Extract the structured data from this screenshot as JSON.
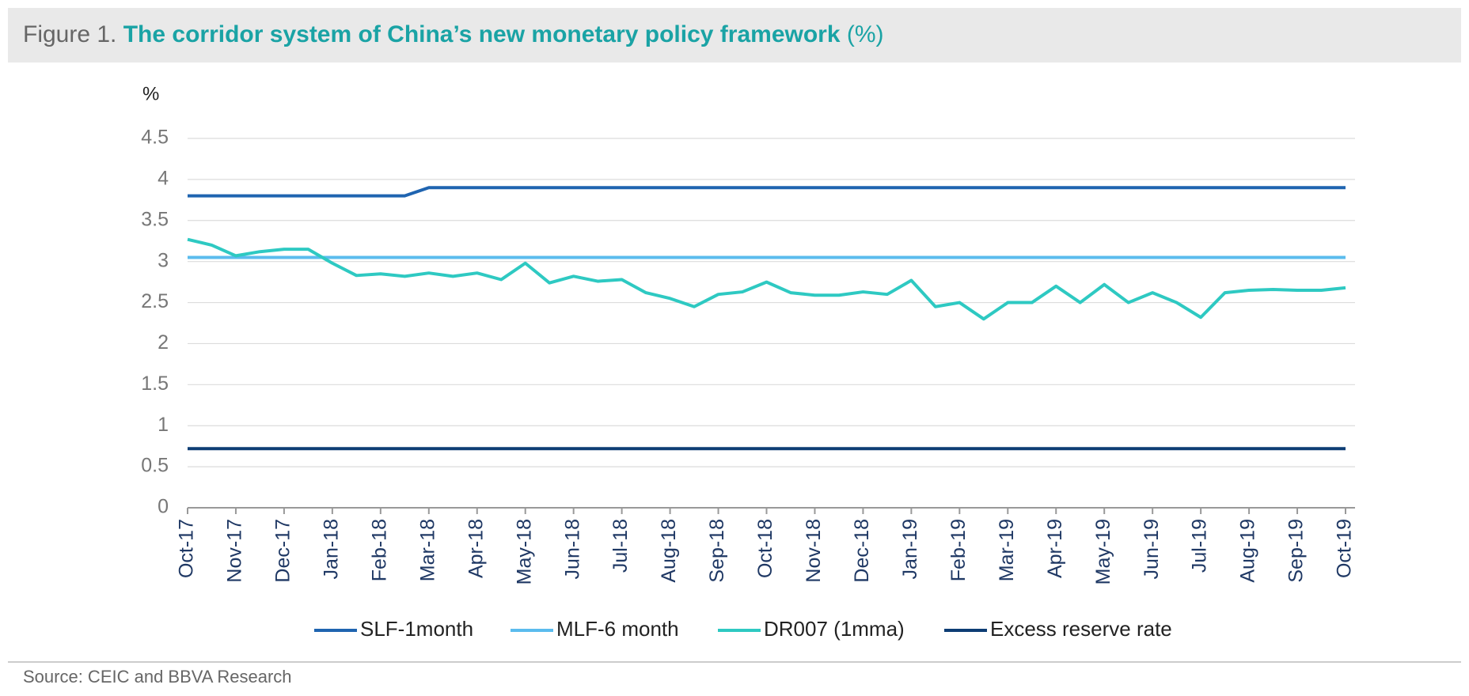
{
  "title_prefix": "Figure 1.",
  "chart_data": {
    "type": "line",
    "title": "The corridor system of China’s new monetary policy framework",
    "title_suffix": "(%)",
    "y_label": "%",
    "categories": [
      "Oct-17",
      null,
      "Nov-17",
      null,
      "Dec-17",
      null,
      "Jan-18",
      null,
      "Feb-18",
      null,
      "Mar-18",
      null,
      "Apr-18",
      null,
      "May-18",
      null,
      "Jun-18",
      null,
      "Jul-18",
      null,
      "Aug-18",
      null,
      "Sep-18",
      null,
      "Oct-18",
      null,
      "Nov-18",
      null,
      "Dec-18",
      null,
      "Jan-19",
      null,
      "Feb-19",
      null,
      "Mar-19",
      null,
      "Apr-19",
      null,
      "May-19",
      null,
      "Jun-19",
      null,
      "Jul-19",
      null,
      "Aug-19",
      null,
      "Sep-19",
      null,
      "Oct-19"
    ],
    "series": [
      {
        "name": "SLF-1month",
        "color": "#1f64b0",
        "values": [
          3.8,
          3.8,
          3.8,
          3.8,
          3.8,
          3.8,
          3.8,
          3.8,
          3.8,
          3.8,
          3.9,
          3.9,
          3.9,
          3.9,
          3.9,
          3.9,
          3.9,
          3.9,
          3.9,
          3.9,
          3.9,
          3.9,
          3.9,
          3.9,
          3.9,
          3.9,
          3.9,
          3.9,
          3.9,
          3.9,
          3.9,
          3.9,
          3.9,
          3.9,
          3.9,
          3.9,
          3.9,
          3.9,
          3.9,
          3.9,
          3.9,
          3.9,
          3.9,
          3.9,
          3.9,
          3.9,
          3.9,
          3.9,
          3.9
        ]
      },
      {
        "name": "MLF-6 month",
        "color": "#5bbcee",
        "values": [
          3.05,
          3.05,
          3.05,
          3.05,
          3.05,
          3.05,
          3.05,
          3.05,
          3.05,
          3.05,
          3.05,
          3.05,
          3.05,
          3.05,
          3.05,
          3.05,
          3.05,
          3.05,
          3.05,
          3.05,
          3.05,
          3.05,
          3.05,
          3.05,
          3.05,
          3.05,
          3.05,
          3.05,
          3.05,
          3.05,
          3.05,
          3.05,
          3.05,
          3.05,
          3.05,
          3.05,
          3.05,
          3.05,
          3.05,
          3.05,
          3.05,
          3.05,
          3.05,
          3.05,
          3.05,
          3.05,
          3.05,
          3.05,
          3.05
        ]
      },
      {
        "name": "DR007 (1mma)",
        "color": "#2ec9c2",
        "values": [
          3.27,
          3.2,
          3.07,
          3.12,
          3.15,
          3.15,
          2.98,
          2.83,
          2.85,
          2.82,
          2.86,
          2.82,
          2.86,
          2.78,
          2.98,
          2.74,
          2.82,
          2.76,
          2.78,
          2.62,
          2.55,
          2.45,
          2.6,
          2.63,
          2.75,
          2.62,
          2.59,
          2.59,
          2.63,
          2.6,
          2.77,
          2.45,
          2.5,
          2.3,
          2.5,
          2.5,
          2.7,
          2.5,
          2.72,
          2.5,
          2.62,
          2.5,
          2.32,
          2.62,
          2.65,
          2.66,
          2.65,
          2.65,
          2.68
        ]
      },
      {
        "name": "Excess reserve rate",
        "color": "#0d3d74",
        "values": [
          0.72,
          0.72,
          0.72,
          0.72,
          0.72,
          0.72,
          0.72,
          0.72,
          0.72,
          0.72,
          0.72,
          0.72,
          0.72,
          0.72,
          0.72,
          0.72,
          0.72,
          0.72,
          0.72,
          0.72,
          0.72,
          0.72,
          0.72,
          0.72,
          0.72,
          0.72,
          0.72,
          0.72,
          0.72,
          0.72,
          0.72,
          0.72,
          0.72,
          0.72,
          0.72,
          0.72,
          0.72,
          0.72,
          0.72,
          0.72,
          0.72,
          0.72,
          0.72,
          0.72,
          0.72,
          0.72,
          0.72,
          0.72,
          0.72
        ]
      }
    ],
    "ylim": [
      0,
      4.5
    ],
    "yticks": [
      0,
      0.5,
      1,
      1.5,
      2,
      2.5,
      3,
      3.5,
      4,
      4.5
    ],
    "grid": true,
    "legend": "bottom"
  },
  "source": "Source: CEIC and BBVA Research"
}
